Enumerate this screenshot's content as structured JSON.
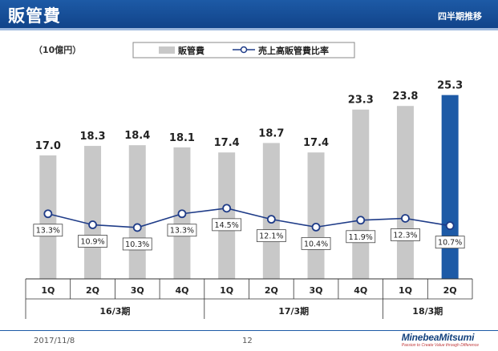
{
  "header": {
    "title": "販管費",
    "subtitle": "四半期推移"
  },
  "unit_label": "（10億円）",
  "legend": {
    "bar_label": "販管費",
    "line_label": "売上高販管費比率"
  },
  "colors": {
    "bar": "#c8c8c8",
    "bar_highlight": "#1d5aa6",
    "line": "#1f3c88"
  },
  "chart_data": {
    "type": "bar",
    "categories": [
      "1Q",
      "2Q",
      "3Q",
      "4Q",
      "1Q",
      "2Q",
      "3Q",
      "4Q",
      "1Q",
      "2Q"
    ],
    "groups": [
      {
        "label": "16/3期",
        "count": 4
      },
      {
        "label": "17/3期",
        "count": 4
      },
      {
        "label": "18/3期",
        "count": 2
      }
    ],
    "series": [
      {
        "name": "販管費",
        "type": "bar",
        "values": [
          17.0,
          18.3,
          18.4,
          18.1,
          17.4,
          18.7,
          17.4,
          23.3,
          23.8,
          25.3
        ],
        "value_labels": [
          "17.0",
          "18.3",
          "18.4",
          "18.1",
          "17.4",
          "18.7",
          "17.4",
          "23.3",
          "23.8",
          "25.3"
        ]
      },
      {
        "name": "売上高販管費比率",
        "type": "line",
        "values": [
          13.3,
          10.9,
          10.3,
          13.3,
          14.5,
          12.1,
          10.4,
          11.9,
          12.3,
          10.7
        ],
        "value_labels": [
          "13.3%",
          "10.9%",
          "10.3%",
          "13.3%",
          "14.5%",
          "12.1%",
          "10.4%",
          "11.9%",
          "12.3%",
          "10.7%"
        ]
      }
    ],
    "highlight_index": 9,
    "ylim_bar": [
      0,
      30
    ],
    "ylim_line": [
      0,
      30
    ]
  },
  "footer": {
    "date": "2017/11/8",
    "page": "12",
    "logo": "MinebeaMitsumi",
    "logo_tagline": "Passion to Create Value through Difference"
  }
}
